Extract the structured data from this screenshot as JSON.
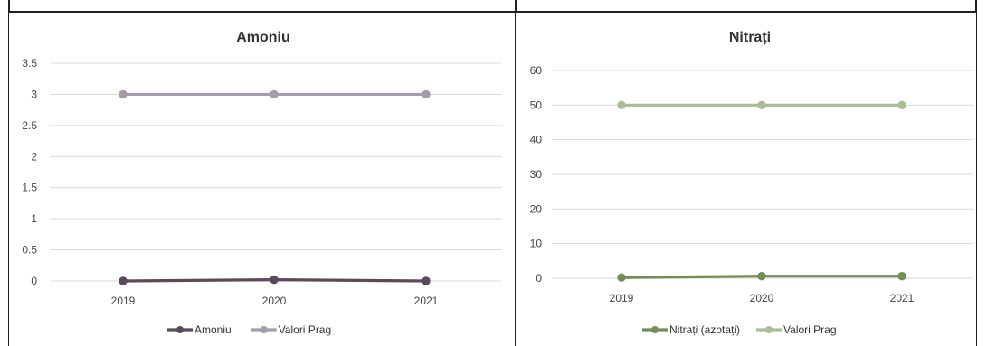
{
  "chart_data": [
    {
      "type": "line",
      "title": "Amoniu",
      "categories": [
        "2019",
        "2020",
        "2021"
      ],
      "ylim": [
        0,
        3.5
      ],
      "yticks": [
        "0",
        "0.5",
        "1",
        "1.5",
        "2",
        "2.5",
        "3",
        "3.5"
      ],
      "grid": true,
      "legend_position": "bottom",
      "series": [
        {
          "name": "Amoniu",
          "values": [
            0.0,
            0.02,
            0.0
          ],
          "color": "#5b4a5c"
        },
        {
          "name": "Valori Prag",
          "values": [
            3,
            3,
            3
          ],
          "color": "#a49ca8"
        }
      ]
    },
    {
      "type": "line",
      "title": "Nitrați",
      "categories": [
        "2019",
        "2020",
        "2021"
      ],
      "ylim": [
        0,
        60
      ],
      "yticks": [
        "0",
        "10",
        "20",
        "30",
        "40",
        "50",
        "60"
      ],
      "grid": true,
      "legend_position": "bottom",
      "series": [
        {
          "name": "Nitrați (azotați)",
          "values": [
            0.2,
            0.6,
            0.6
          ],
          "color": "#6f8f55"
        },
        {
          "name": "Valori Prag",
          "values": [
            50,
            50,
            50
          ],
          "color": "#a8bf95"
        }
      ]
    }
  ]
}
